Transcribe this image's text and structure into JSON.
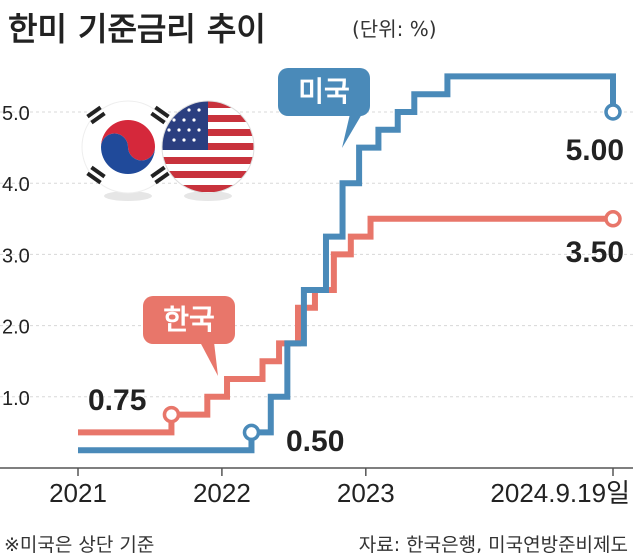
{
  "title": "한미 기준금리 추이",
  "unit": "(단위: %)",
  "footnote": "※미국은 상단 기준",
  "source": "자료: 한국은행, 미국연방준비제도",
  "icons": {
    "korea_flag": "korea-flag-icon",
    "us_flag": "us-flag-icon"
  },
  "colors": {
    "us": "#4a8ab9",
    "korea": "#e8766a",
    "grid": "#d8d8d8",
    "axis": "#555555"
  },
  "chart_data": {
    "type": "line",
    "title": "한미 기준금리 추이",
    "unit": "(단위: %)",
    "y_ticks": [
      "1.0",
      "2.0",
      "3.0",
      "4.0",
      "5.0"
    ],
    "x_ticks": [
      "2021",
      "2022",
      "2023",
      "2024.9.19일"
    ],
    "ylim": [
      0,
      5.5
    ],
    "grid": "horizontal dashed",
    "series": [
      {
        "name": "미국",
        "color": "#4a8ab9",
        "start_label": "0.50",
        "end_label": "5.00",
        "points": [
          [
            "2021-01-01",
            0.25
          ],
          [
            "2022-03-17",
            0.5
          ],
          [
            "2022-05-05",
            1.0
          ],
          [
            "2022-06-16",
            1.75
          ],
          [
            "2022-07-28",
            2.5
          ],
          [
            "2022-09-22",
            3.25
          ],
          [
            "2022-11-03",
            4.0
          ],
          [
            "2022-12-15",
            4.5
          ],
          [
            "2023-02-02",
            4.75
          ],
          [
            "2023-03-23",
            5.0
          ],
          [
            "2023-05-04",
            5.25
          ],
          [
            "2023-07-27",
            5.5
          ],
          [
            "2024-09-19",
            5.0
          ]
        ]
      },
      {
        "name": "한국",
        "color": "#e8766a",
        "start_label": "0.75",
        "end_label": "3.50",
        "points": [
          [
            "2021-01-01",
            0.5
          ],
          [
            "2021-08-26",
            0.75
          ],
          [
            "2021-11-25",
            1.0
          ],
          [
            "2022-01-14",
            1.25
          ],
          [
            "2022-04-14",
            1.5
          ],
          [
            "2022-05-26",
            1.75
          ],
          [
            "2022-07-13",
            2.25
          ],
          [
            "2022-08-25",
            2.5
          ],
          [
            "2022-10-12",
            3.0
          ],
          [
            "2022-11-24",
            3.25
          ],
          [
            "2023-01-13",
            3.5
          ],
          [
            "2024-09-19",
            3.5
          ]
        ]
      }
    ]
  }
}
